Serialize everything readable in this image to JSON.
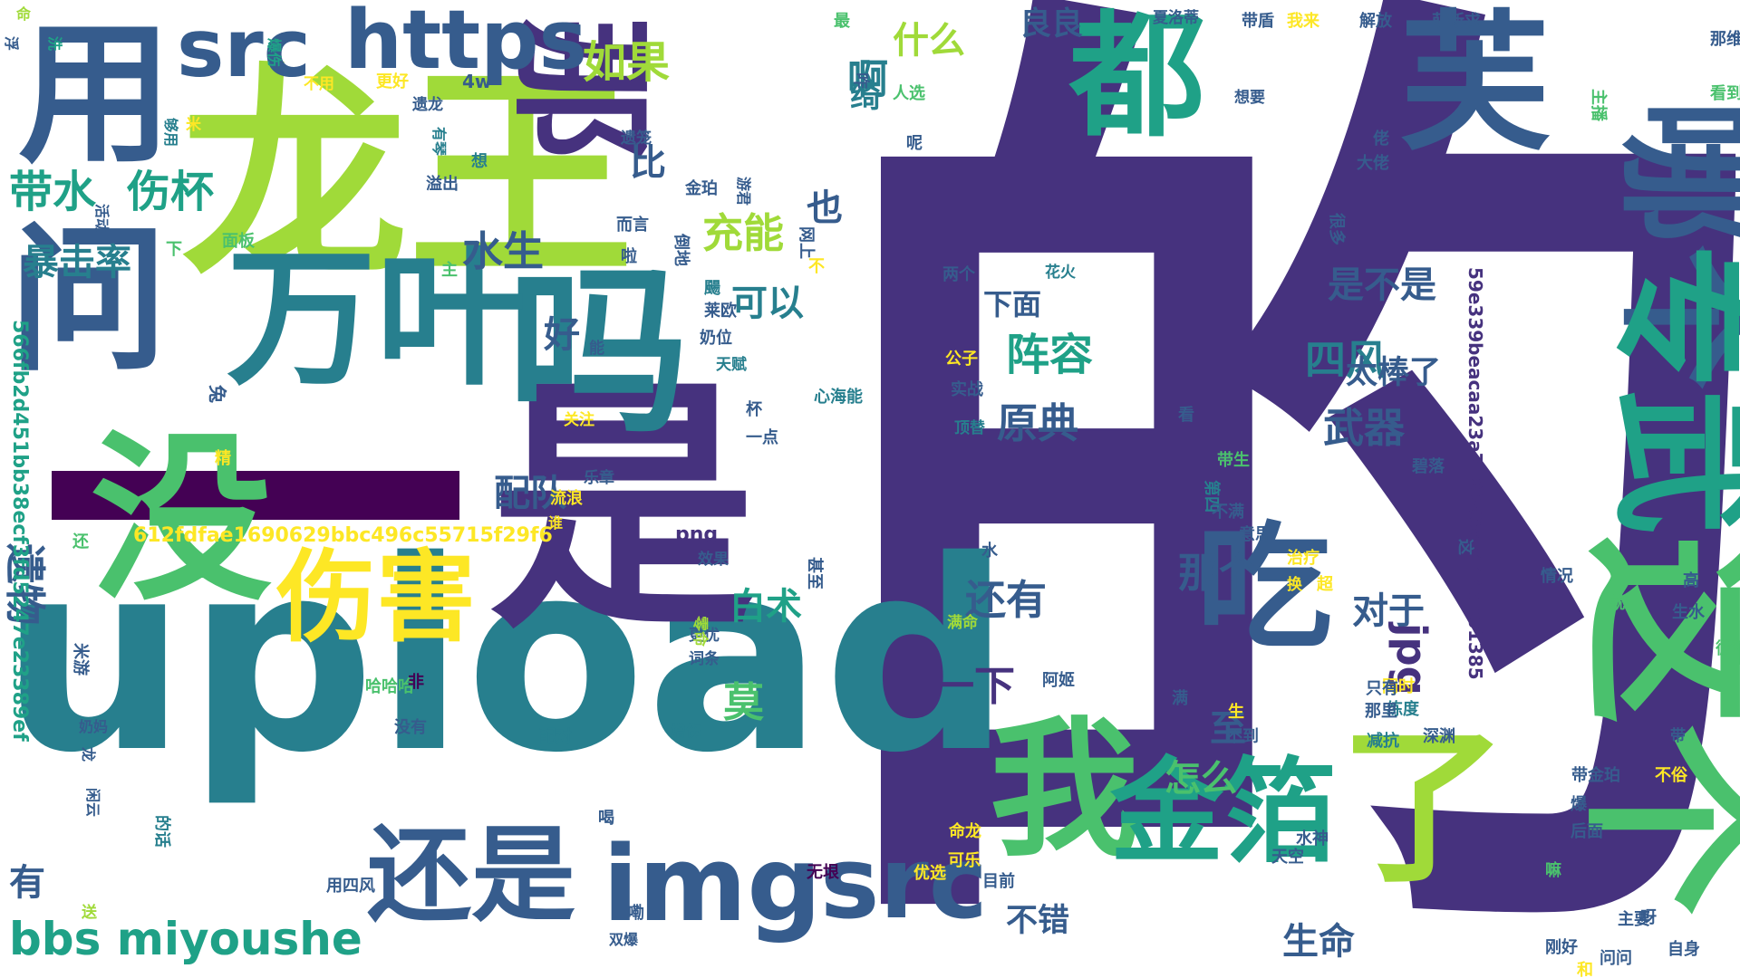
{
  "colors": {
    "background": "#ffffff",
    "palette": [
      "#440154",
      "#46327e",
      "#365c8d",
      "#277f8e",
      "#1fa187",
      "#4ac16d",
      "#a0da39",
      "#fde725"
    ]
  },
  "words": [
    {
      "text": "的",
      "color": "#46327e"
    },
    {
      "text": "upload",
      "color": "#277f8e"
    },
    {
      "text": "龙王",
      "color": "#a0da39"
    },
    {
      "text": "是",
      "color": "#46327e"
    },
    {
      "text": "吗",
      "color": "#277f8e"
    },
    {
      "text": "没",
      "color": "#4ac16d"
    },
    {
      "text": "用",
      "color": "#365c8d"
    },
    {
      "text": "问",
      "color": "#365c8d"
    },
    {
      "text": "万叶",
      "color": "#277f8e"
    },
    {
      "text": "都",
      "color": "#1fa187"
    },
    {
      "text": "芙",
      "color": "#365c8d"
    },
    {
      "text": "那",
      "color": "#46327e"
    },
    {
      "text": "哪个",
      "color": "#365c8d"
    },
    {
      "text": "专武",
      "color": "#1fa187"
    },
    {
      "text": "这个",
      "color": "#4ac16d"
    },
    {
      "text": "我",
      "color": "#4ac16d"
    },
    {
      "text": "了",
      "color": "#a0da39"
    },
    {
      "text": "金箔",
      "color": "#1fa187"
    },
    {
      "text": "吃",
      "color": "#365c8d"
    },
    {
      "text": "伤害",
      "color": "#fde725"
    },
    {
      "text": "还是",
      "color": "#365c8d"
    },
    {
      "text": "img",
      "color": "#365c8d"
    },
    {
      "text": "src",
      "color": "#365c8d"
    },
    {
      "text": "src",
      "color": "#365c8d"
    },
    {
      "text": "https",
      "color": "#365c8d"
    },
    {
      "text": "一",
      "color": "#440154"
    },
    {
      "text": "bbs miyoushe",
      "color": "#1fa187"
    },
    {
      "text": "带水",
      "color": "#1fa187"
    },
    {
      "text": "伤杯",
      "color": "#1fa187"
    },
    {
      "text": "暴击率",
      "color": "#277f8e"
    },
    {
      "text": "如果",
      "color": "#a0da39"
    },
    {
      "text": "比",
      "color": "#365c8d"
    },
    {
      "text": "什么",
      "color": "#a0da39"
    },
    {
      "text": "啊",
      "color": "#277f8e"
    },
    {
      "text": "绮",
      "color": "#277f8e"
    },
    {
      "text": "良良",
      "color": "#365c8d"
    },
    {
      "text": "水生",
      "color": "#365c8d"
    },
    {
      "text": "遗物",
      "color": "#365c8d"
    },
    {
      "text": "充能",
      "color": "#a0da39"
    },
    {
      "text": "也",
      "color": "#365c8d"
    },
    {
      "text": "可以",
      "color": "#277f8e"
    },
    {
      "text": "好",
      "color": "#365c8d"
    },
    {
      "text": "阵容",
      "color": "#1fa187"
    },
    {
      "text": "原典",
      "color": "#365c8d"
    },
    {
      "text": "配队",
      "color": "#365c8d"
    },
    {
      "text": "白术",
      "color": "#1fa187"
    },
    {
      "text": "莫",
      "color": "#4ac16d"
    },
    {
      "text": "下面",
      "color": "#365c8d"
    },
    {
      "text": "还有",
      "color": "#365c8d"
    },
    {
      "text": "一下",
      "color": "#46327e"
    },
    {
      "text": "是不是",
      "color": "#365c8d"
    },
    {
      "text": "四风",
      "color": "#277f8e"
    },
    {
      "text": "太棒了",
      "color": "#365c8d"
    },
    {
      "text": "武器",
      "color": "#365c8d"
    },
    {
      "text": "那个",
      "color": "#365c8d"
    },
    {
      "text": "对于",
      "color": "#365c8d"
    },
    {
      "text": "jpg",
      "color": "#46327e"
    },
    {
      "text": "怎么",
      "color": "#4ac16d"
    },
    {
      "text": "至",
      "color": "#365c8d"
    },
    {
      "text": "生命",
      "color": "#365c8d"
    },
    {
      "text": "有",
      "color": "#365c8d"
    },
    {
      "text": "不错",
      "color": "#365c8d"
    },
    {
      "text": "612fdfae1690629bbc496c55715f29f6",
      "color": "#fde725"
    },
    {
      "text": "566fb2d451bb38ecf3fd5247e23389ef",
      "color": "#1fa187"
    },
    {
      "text": "59e339beacaa23a712696e5444db01385",
      "color": "#46327e"
    },
    {
      "text": "png",
      "color": "#46327e"
    },
    {
      "text": "命",
      "color": "#a0da39"
    },
    {
      "text": "浮",
      "color": "#365c8d"
    },
    {
      "text": "洗",
      "color": "#1fa187"
    },
    {
      "text": "爆伤",
      "color": "#1fa187"
    },
    {
      "text": "不用",
      "color": "#fde725"
    },
    {
      "text": "更好",
      "color": "#fde725"
    },
    {
      "text": "4w",
      "color": "#365c8d"
    },
    {
      "text": "遗龙",
      "color": "#365c8d"
    },
    {
      "text": "够用",
      "color": "#277f8e"
    },
    {
      "text": "米",
      "color": "#fde725"
    },
    {
      "text": "有琴",
      "color": "#277f8e"
    },
    {
      "text": "想",
      "color": "#277f8e"
    },
    {
      "text": "溢出",
      "color": "#365c8d"
    },
    {
      "text": "活动",
      "color": "#365c8d"
    },
    {
      "text": "下",
      "color": "#4ac16d"
    },
    {
      "text": "面板",
      "color": "#4ac16d"
    },
    {
      "text": "主",
      "color": "#4ac16d"
    },
    {
      "text": "能",
      "color": "#365c8d"
    },
    {
      "text": "兔",
      "color": "#365c8d"
    },
    {
      "text": "关注",
      "color": "#fde725"
    },
    {
      "text": "精",
      "color": "#fde725"
    },
    {
      "text": "流浪",
      "color": "#fde725"
    },
    {
      "text": "乐章",
      "color": "#365c8d"
    },
    {
      "text": "谁",
      "color": "#fde725"
    },
    {
      "text": "还",
      "color": "#4ac16d"
    },
    {
      "text": "米游",
      "color": "#365c8d"
    },
    {
      "text": "奶妈",
      "color": "#365c8d"
    },
    {
      "text": "龙",
      "color": "#365c8d"
    },
    {
      "text": "闲云",
      "color": "#365c8d"
    },
    {
      "text": "的话",
      "color": "#277f8e"
    },
    {
      "text": "哈哈哈",
      "color": "#4ac16d"
    },
    {
      "text": "非",
      "color": "#440154"
    },
    {
      "text": "没有",
      "color": "#365c8d"
    },
    {
      "text": "配对",
      "color": "#277f8e"
    },
    {
      "text": "增伤",
      "color": "#277f8e"
    },
    {
      "text": "词条",
      "color": "#365c8d"
    },
    {
      "text": "更优",
      "color": "#365c8d"
    },
    {
      "text": "零命",
      "color": "#a0da39"
    },
    {
      "text": "效果",
      "color": "#365c8d"
    },
    {
      "text": "喝",
      "color": "#365c8d"
    },
    {
      "text": "用四风",
      "color": "#365c8d"
    },
    {
      "text": "送",
      "color": "#a0da39"
    },
    {
      "text": "嘞",
      "color": "#365c8d"
    },
    {
      "text": "无垠",
      "color": "#440154"
    },
    {
      "text": "双爆",
      "color": "#365c8d"
    },
    {
      "text": "遗笼",
      "color": "#365c8d"
    },
    {
      "text": "最",
      "color": "#4ac16d"
    },
    {
      "text": "咋",
      "color": "#365c8d"
    },
    {
      "text": "人选",
      "color": "#4ac16d"
    },
    {
      "text": "呢",
      "color": "#365c8d"
    },
    {
      "text": "金珀",
      "color": "#365c8d"
    },
    {
      "text": "游君",
      "color": "#365c8d"
    },
    {
      "text": "而言",
      "color": "#365c8d"
    },
    {
      "text": "啦",
      "color": "#365c8d"
    },
    {
      "text": "倒地",
      "color": "#365c8d"
    },
    {
      "text": "网上",
      "color": "#365c8d"
    },
    {
      "text": "不",
      "color": "#fde725"
    },
    {
      "text": "颺",
      "color": "#277f8e"
    },
    {
      "text": "莱欧",
      "color": "#365c8d"
    },
    {
      "text": "奶位",
      "color": "#365c8d"
    },
    {
      "text": "天赋",
      "color": "#277f8e"
    },
    {
      "text": "心海能",
      "color": "#277f8e"
    },
    {
      "text": "杯",
      "color": "#365c8d"
    },
    {
      "text": "一点",
      "color": "#365c8d"
    },
    {
      "text": "甚至",
      "color": "#365c8d"
    },
    {
      "text": "夏洛蒂",
      "color": "#365c8d"
    },
    {
      "text": "带盾",
      "color": "#365c8d"
    },
    {
      "text": "我来",
      "color": "#fde725"
    },
    {
      "text": "解放",
      "color": "#365c8d"
    },
    {
      "text": "萌新求",
      "color": "#365c8d"
    },
    {
      "text": "那维",
      "color": "#365c8d"
    },
    {
      "text": "看到",
      "color": "#4ac16d"
    },
    {
      "text": "主播",
      "color": "#4ac16d"
    },
    {
      "text": "想要",
      "color": "#365c8d"
    },
    {
      "text": "佬",
      "color": "#365c8d"
    },
    {
      "text": "大佬",
      "color": "#365c8d"
    },
    {
      "text": "很多",
      "color": "#365c8d"
    },
    {
      "text": "两个",
      "color": "#365c8d"
    },
    {
      "text": "花火",
      "color": "#277f8e"
    },
    {
      "text": "公子",
      "color": "#fde725"
    },
    {
      "text": "实战",
      "color": "#365c8d"
    },
    {
      "text": "顶替",
      "color": "#277f8e"
    },
    {
      "text": "水",
      "color": "#365c8d"
    },
    {
      "text": "满命",
      "color": "#a0da39"
    },
    {
      "text": "阿姬",
      "color": "#365c8d"
    },
    {
      "text": "同时",
      "color": "#fde725"
    },
    {
      "text": "练度",
      "color": "#277f8e"
    },
    {
      "text": "减抗",
      "color": "#277f8e"
    },
    {
      "text": "看",
      "color": "#365c8d"
    },
    {
      "text": "带生",
      "color": "#4ac16d"
    },
    {
      "text": "碧落",
      "color": "#365c8d"
    },
    {
      "text": "第四",
      "color": "#277f8e"
    },
    {
      "text": "不满",
      "color": "#365c8d"
    },
    {
      "text": "意思",
      "color": "#365c8d"
    },
    {
      "text": "治疗",
      "color": "#fde725"
    },
    {
      "text": "换",
      "color": "#fde725"
    },
    {
      "text": "超",
      "color": "#fde725"
    },
    {
      "text": "这",
      "color": "#365c8d"
    },
    {
      "text": "情况",
      "color": "#365c8d"
    },
    {
      "text": "高",
      "color": "#365c8d"
    },
    {
      "text": "就",
      "color": "#4ac16d"
    },
    {
      "text": "生水",
      "color": "#365c8d"
    },
    {
      "text": "循环",
      "color": "#4ac16d"
    },
    {
      "text": "只有",
      "color": "#365c8d"
    },
    {
      "text": "那里",
      "color": "#365c8d"
    },
    {
      "text": "深渊",
      "color": "#365c8d"
    },
    {
      "text": "满",
      "color": "#365c8d"
    },
    {
      "text": "生",
      "color": "#fde725"
    },
    {
      "text": "不到",
      "color": "#365c8d"
    },
    {
      "text": "带",
      "color": "#365c8d"
    },
    {
      "text": "不俗",
      "color": "#fde725"
    },
    {
      "text": "带金珀",
      "color": "#365c8d"
    },
    {
      "text": "爆",
      "color": "#365c8d"
    },
    {
      "text": "后面",
      "color": "#365c8d"
    },
    {
      "text": "命龙",
      "color": "#fde725"
    },
    {
      "text": "可乐",
      "color": "#fde725"
    },
    {
      "text": "优选",
      "color": "#fde725"
    },
    {
      "text": "目前",
      "color": "#365c8d"
    },
    {
      "text": "天空",
      "color": "#365c8d"
    },
    {
      "text": "水神",
      "color": "#365c8d"
    },
    {
      "text": "嘛",
      "color": "#4ac16d"
    },
    {
      "text": "主要",
      "color": "#365c8d"
    },
    {
      "text": "呀",
      "color": "#365c8d"
    },
    {
      "text": "刚好",
      "color": "#365c8d"
    },
    {
      "text": "和",
      "color": "#fde725"
    },
    {
      "text": "问问",
      "color": "#365c8d"
    },
    {
      "text": "自身",
      "color": "#365c8d"
    }
  ]
}
